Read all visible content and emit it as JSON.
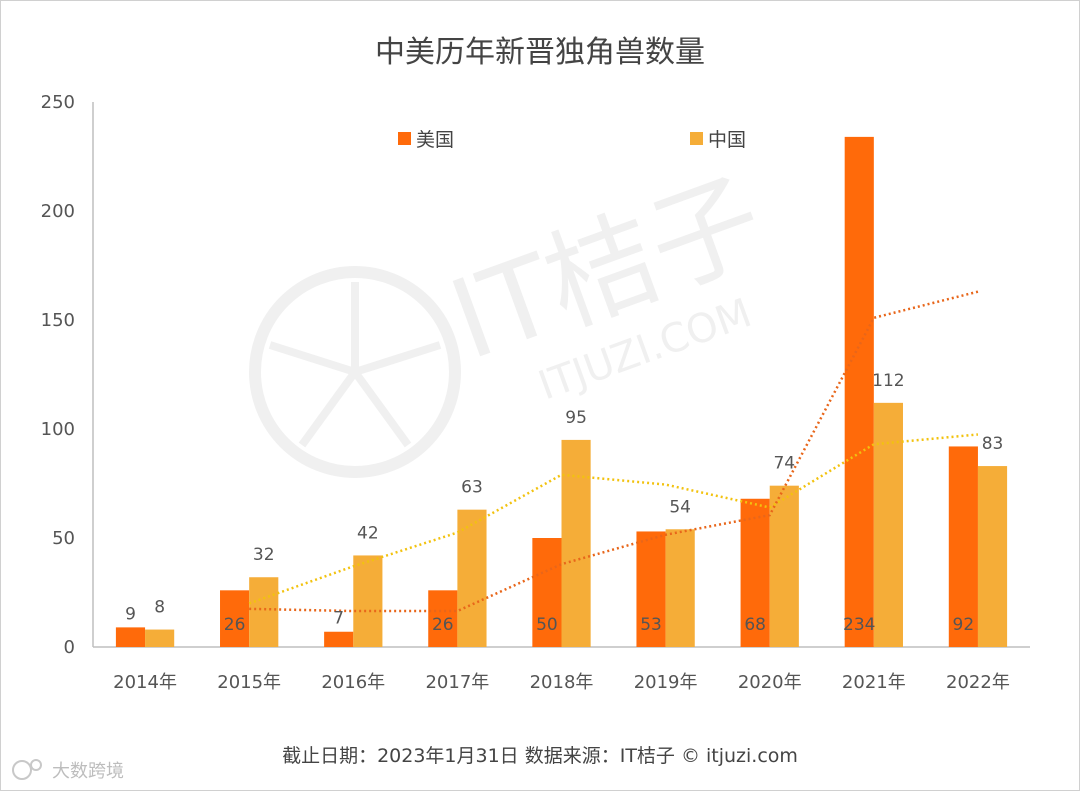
{
  "title": "中美历年新晋独角兽数量",
  "footer": "截止日期：2023年1月31日    数据来源：IT桔子 © itjuzi.com",
  "watermark": {
    "brand": "IT桔子",
    "domain": "ITJUZI.COM",
    "corner_text": "大数跨境",
    "icon": "orange-slice-icon"
  },
  "colors": {
    "usa": "#ff6a0a",
    "china": "#f5ad38",
    "usa_trend": "#e8661a",
    "china_trend": "#f2c20f",
    "axis": "#bfbfbf",
    "text": "#555555"
  },
  "chart_data": {
    "type": "bar",
    "title": "中美历年新晋独角兽数量",
    "categories": [
      "2014年",
      "2015年",
      "2016年",
      "2017年",
      "2018年",
      "2019年",
      "2020年",
      "2021年",
      "2022年"
    ],
    "series": [
      {
        "name": "美国",
        "values": [
          9,
          26,
          7,
          26,
          50,
          53,
          68,
          234,
          92
        ]
      },
      {
        "name": "中国",
        "values": [
          8,
          32,
          42,
          63,
          95,
          54,
          74,
          112,
          83
        ]
      }
    ],
    "trendlines": "2-period moving average, dotted, one per series",
    "ylim": [
      0,
      250
    ],
    "yticks": [
      0,
      50,
      100,
      150,
      200,
      250
    ],
    "grid": false,
    "legend": "top",
    "xlabel": "",
    "ylabel": ""
  }
}
